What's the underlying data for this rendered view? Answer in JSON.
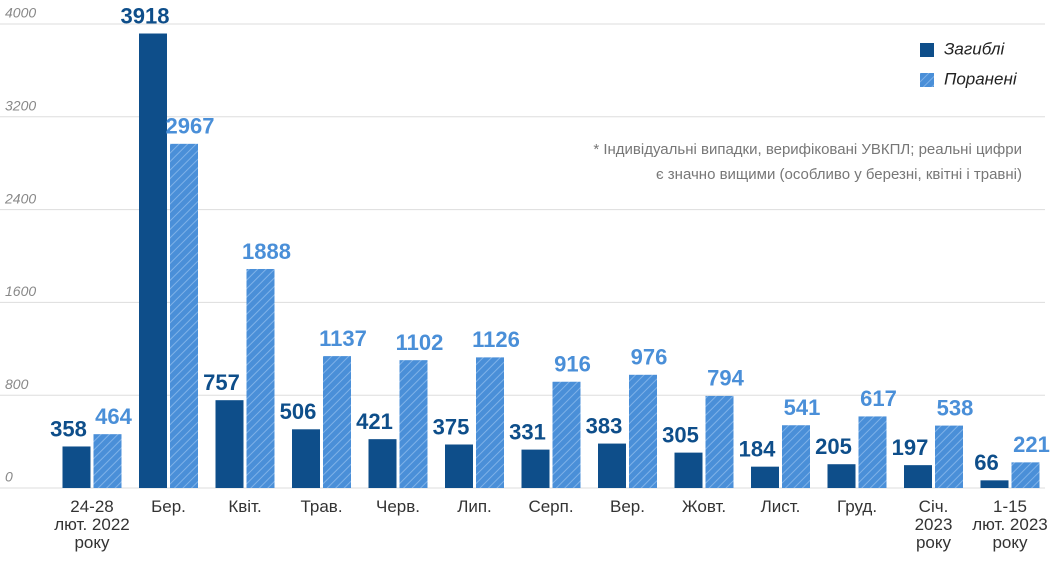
{
  "chart_data": {
    "type": "bar",
    "categories": [
      [
        "24-28",
        "лют. 2022",
        "року"
      ],
      [
        "Бер."
      ],
      [
        "Квіт."
      ],
      [
        "Трав."
      ],
      [
        "Черв."
      ],
      [
        "Лип."
      ],
      [
        "Серп."
      ],
      [
        "Вер."
      ],
      [
        "Жовт."
      ],
      [
        "Лист."
      ],
      [
        "Груд."
      ],
      [
        "Січ.",
        "2023",
        "року"
      ],
      [
        "1-15",
        "лют. 2023",
        "року"
      ]
    ],
    "series": [
      {
        "name": "Загиблі",
        "color": "#0e4e8a",
        "values": [
          358,
          3918,
          757,
          506,
          421,
          375,
          331,
          383,
          305,
          184,
          205,
          197,
          66
        ]
      },
      {
        "name": "Поранені",
        "color": "#4a8fd8",
        "values": [
          464,
          2967,
          1888,
          1137,
          1102,
          1126,
          916,
          976,
          794,
          541,
          617,
          538,
          221
        ]
      }
    ],
    "ylim": [
      0,
      4000
    ],
    "yticks": [
      0,
      800,
      1600,
      2400,
      3200,
      4000
    ],
    "grid": true,
    "legend": "top-right",
    "note": [
      "* Індивідуальні випадки, верифіковані УВКПЛ; реальні цифри",
      "є значно вищими (особливо у березні, квітні і травні)"
    ]
  }
}
